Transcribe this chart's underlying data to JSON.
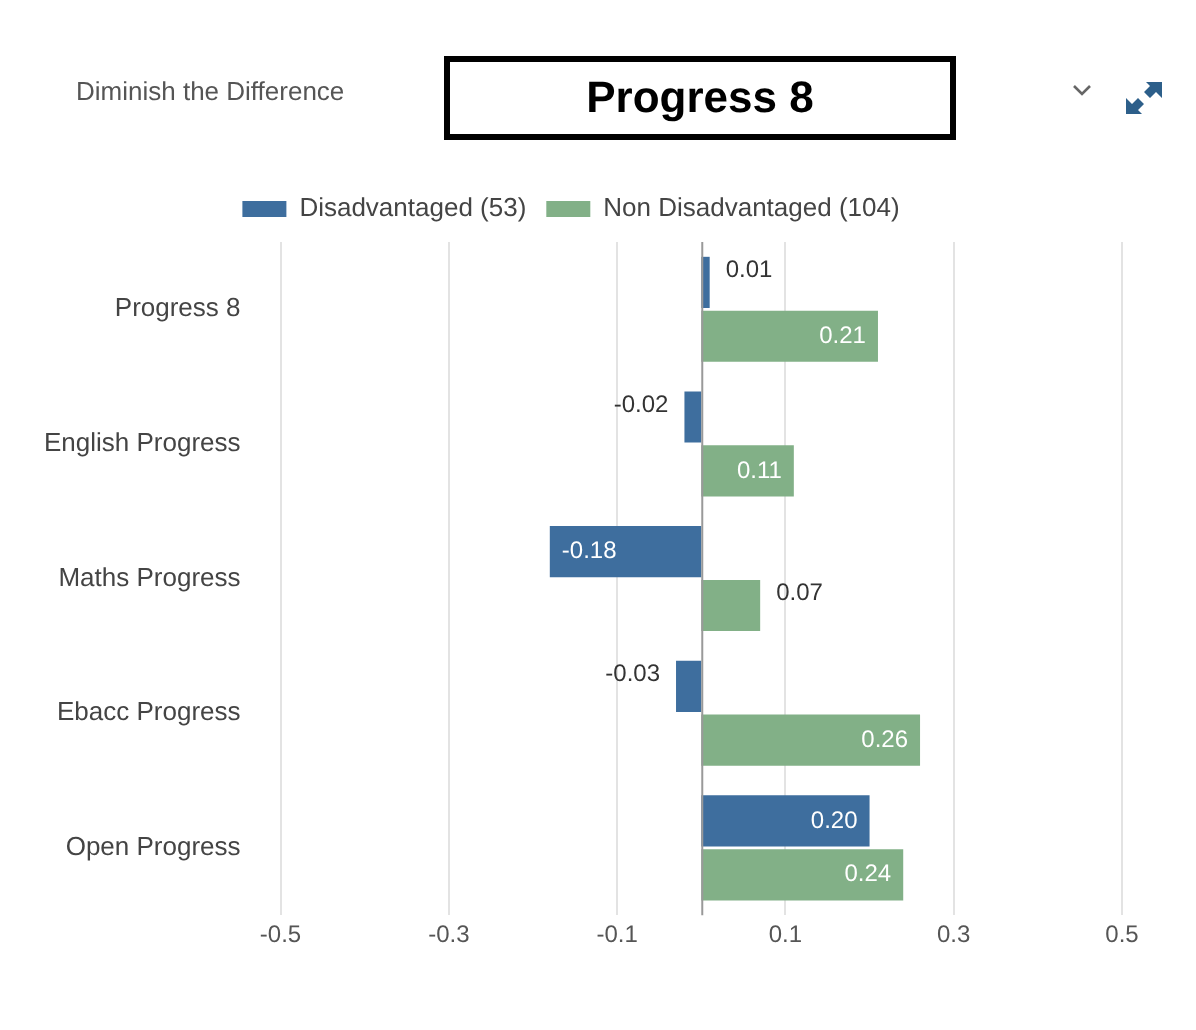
{
  "chart_data": {
    "type": "bar",
    "title": "Progress 8",
    "subtitle": "Diminish the Difference",
    "orientation": "horizontal",
    "categories": [
      "Progress 8",
      "English Progress",
      "Maths Progress",
      "Ebacc Progress",
      "Open Progress"
    ],
    "series": [
      {
        "name": "Disadvantaged (53)",
        "color": "#3e6e9e",
        "values": [
          0.01,
          -0.02,
          -0.18,
          -0.03,
          0.2
        ],
        "value_labels": [
          "0.01",
          "-0.02",
          "-0.18",
          "-0.03",
          "0.20"
        ]
      },
      {
        "name": "Non Disadvantaged (104)",
        "color": "#82b087",
        "values": [
          0.21,
          0.11,
          0.07,
          0.26,
          0.24
        ],
        "value_labels": [
          "0.21",
          "0.11",
          "0.07",
          "0.26",
          "0.24"
        ]
      }
    ],
    "xlim": [
      -0.5,
      0.5
    ],
    "xticks": [
      -0.5,
      -0.3,
      -0.1,
      0.1,
      0.3,
      0.5
    ],
    "grid": "x",
    "legend": "top"
  }
}
